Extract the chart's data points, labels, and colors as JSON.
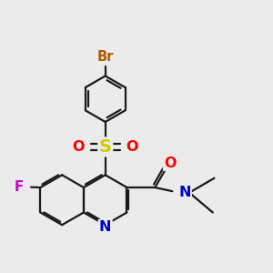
{
  "bg_color": "#ebebeb",
  "bond_color": "#1a1a1a",
  "bond_width": 1.6,
  "atom_labels": {
    "Br": {
      "color": "#b35900",
      "fontsize": 10.5
    },
    "S": {
      "color": "#cccc00",
      "fontsize": 12
    },
    "O": {
      "color": "#ff0000",
      "fontsize": 11.5
    },
    "N": {
      "color": "#0000cc",
      "fontsize": 11.5
    },
    "F": {
      "color": "#cc00cc",
      "fontsize": 11
    }
  },
  "figsize": [
    3.0,
    3.0
  ],
  "dpi": 100
}
